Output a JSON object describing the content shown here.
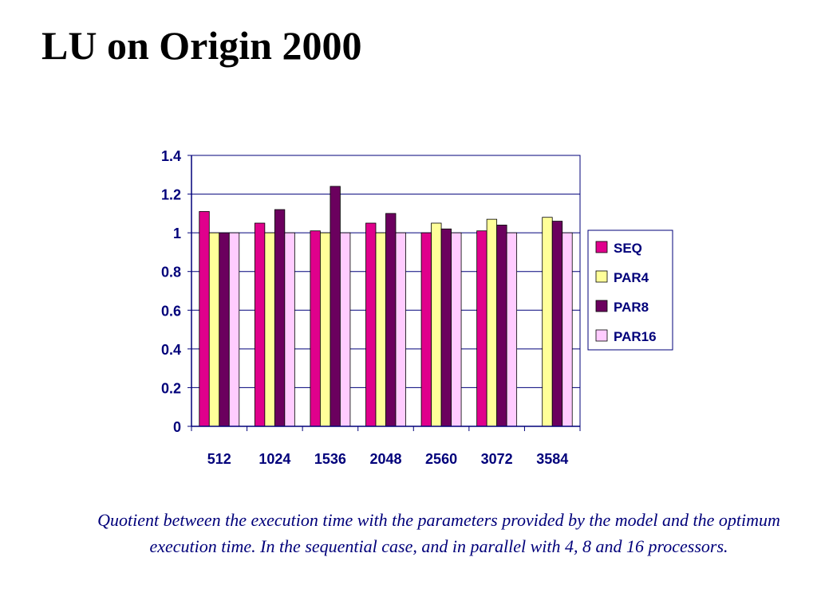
{
  "slide": {
    "title": "LU on Origin 2000",
    "caption": "Quotient between the execution time with the parameters provided by the model and the optimum execution time. In the sequential case, and in parallel with 4, 8 and 16 processors."
  },
  "chart_data": {
    "type": "bar",
    "title": "",
    "xlabel": "",
    "ylabel": "",
    "ylim": [
      0,
      1.4
    ],
    "yticks": [
      "0",
      "0.2",
      "0.4",
      "0.6",
      "0.8",
      "1",
      "1.2",
      "1.4"
    ],
    "grid": true,
    "legend_position": "right",
    "categories": [
      "512",
      "1024",
      "1536",
      "2048",
      "2560",
      "3072",
      "3584"
    ],
    "series": [
      {
        "name": "SEQ",
        "color": "#e0008c",
        "values": [
          1.11,
          1.05,
          1.01,
          1.05,
          1.0,
          1.01,
          null
        ]
      },
      {
        "name": "PAR4",
        "color": "#ffff99",
        "values": [
          1.0,
          1.0,
          1.0,
          1.0,
          1.05,
          1.07,
          1.08
        ]
      },
      {
        "name": "PAR8",
        "color": "#6b005e",
        "values": [
          1.0,
          1.12,
          1.24,
          1.1,
          1.02,
          1.04,
          1.06
        ]
      },
      {
        "name": "PAR16",
        "color": "#ffccff",
        "values": [
          1.0,
          1.0,
          1.0,
          1.0,
          1.0,
          1.0,
          1.0
        ]
      }
    ],
    "colors": {
      "axis_text": "#00007a",
      "grid": "#00007a",
      "bar_outline": "#000000"
    }
  }
}
